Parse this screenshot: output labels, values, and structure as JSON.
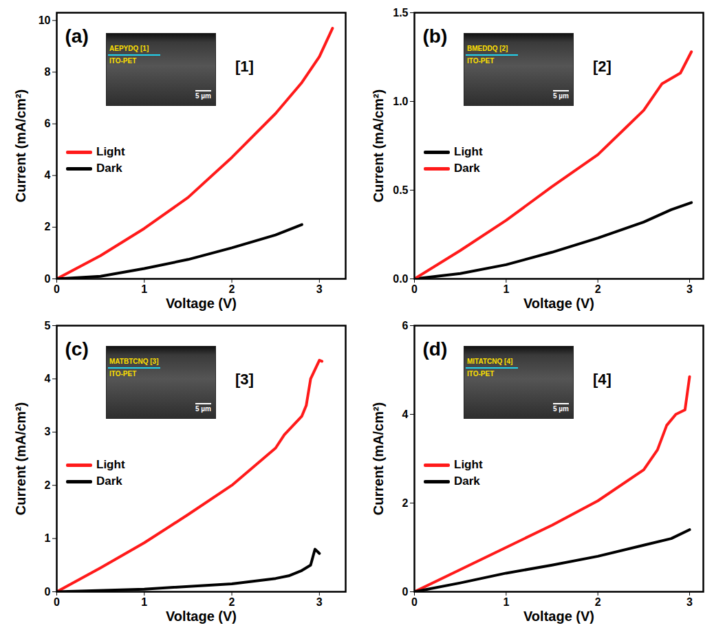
{
  "chart_data": [
    {
      "type": "line",
      "panel_label": "(a)",
      "x_label": "Voltage (V)",
      "y_label": "Current (mA/cm²)",
      "xlim": [
        0,
        3.3
      ],
      "xticks": [
        0,
        1,
        2,
        3
      ],
      "ylim": [
        0,
        10.3
      ],
      "yticks": [
        0,
        2,
        4,
        6,
        8,
        10
      ],
      "legend": "center-left",
      "annotation": "[1]",
      "inset": {
        "layer_label": "AEPYDQ [1]",
        "substrate_label": "ITO-PET",
        "scale_bar": "5 µm"
      },
      "series": [
        {
          "name": "Light",
          "color": "#ff1a1a",
          "x": [
            0,
            0.5,
            1,
            1.5,
            2,
            2.5,
            2.8,
            3,
            3.15
          ],
          "values": [
            0,
            0.9,
            1.95,
            3.15,
            4.7,
            6.4,
            7.6,
            8.6,
            9.7
          ]
        },
        {
          "name": "Dark",
          "color": "#000000",
          "x": [
            0,
            0.5,
            1,
            1.5,
            2,
            2.3,
            2.5,
            2.8
          ],
          "values": [
            0,
            0.1,
            0.4,
            0.75,
            1.2,
            1.5,
            1.7,
            2.1
          ]
        }
      ]
    },
    {
      "type": "line",
      "panel_label": "(b)",
      "x_label": "Voltage (V)",
      "y_label": "Current (mA/cm²)",
      "xlim": [
        0,
        3.15
      ],
      "xticks": [
        0,
        1,
        2,
        3
      ],
      "ylim": [
        0,
        1.5
      ],
      "yticks": [
        {
          "value": 0,
          "label": "0.0"
        },
        {
          "value": 0.5,
          "label": "0.5"
        },
        {
          "value": 1,
          "label": "1.0"
        },
        {
          "value": 1.5,
          "label": "1.5"
        }
      ],
      "legend": "center-left",
      "annotation": "[2]",
      "inset": {
        "layer_label": "BMEDDQ [2]",
        "substrate_label": "ITO-PET",
        "scale_bar": "5 µm"
      },
      "series": [
        {
          "name": "Light",
          "color": "#000000",
          "x": [
            0,
            0.5,
            1,
            1.5,
            2,
            2.5,
            2.8,
            3.02
          ],
          "values": [
            0,
            0.03,
            0.08,
            0.15,
            0.23,
            0.32,
            0.39,
            0.43
          ]
        },
        {
          "name": "Dark",
          "color": "#ff1a1a",
          "x": [
            0,
            0.5,
            1,
            1.5,
            2,
            2.3,
            2.5,
            2.7,
            2.9,
            3.02
          ],
          "values": [
            0,
            0.16,
            0.33,
            0.52,
            0.7,
            0.85,
            0.95,
            1.1,
            1.16,
            1.28
          ]
        }
      ]
    },
    {
      "type": "line",
      "panel_label": "(c)",
      "x_label": "Voltage (V)",
      "y_label": "Current (mA/cm²)",
      "xlim": [
        0,
        3.3
      ],
      "xticks": [
        0,
        1,
        2,
        3
      ],
      "ylim": [
        0,
        5
      ],
      "yticks": [
        0,
        1,
        2,
        3,
        4,
        5
      ],
      "legend": "center-left",
      "annotation": "[3]",
      "inset": {
        "layer_label": "MATBTCNQ [3]",
        "substrate_label": "ITO-PET",
        "scale_bar": "5 µm"
      },
      "series": [
        {
          "name": "Light",
          "color": "#ff1a1a",
          "x": [
            0,
            0.5,
            1,
            1.5,
            2,
            2.5,
            2.6,
            2.8,
            2.85,
            2.9,
            3.0,
            3.03
          ],
          "values": [
            0,
            0.45,
            0.92,
            1.45,
            2.0,
            2.7,
            2.95,
            3.3,
            3.5,
            4.0,
            4.35,
            4.33
          ]
        },
        {
          "name": "Dark",
          "color": "#000000",
          "x": [
            0,
            1,
            2,
            2.5,
            2.65,
            2.8,
            2.9,
            2.95,
            3.0
          ],
          "values": [
            0,
            0.05,
            0.15,
            0.25,
            0.3,
            0.4,
            0.5,
            0.8,
            0.72
          ]
        }
      ]
    },
    {
      "type": "line",
      "panel_label": "(d)",
      "x_label": "Voltage (V)",
      "y_label": "Current (mA/cm²)",
      "xlim": [
        0,
        3.15
      ],
      "xticks": [
        0,
        1,
        2,
        3
      ],
      "ylim": [
        0,
        6
      ],
      "yticks": [
        0,
        2,
        4,
        6
      ],
      "legend": "center-left",
      "annotation": "[4]",
      "inset": {
        "layer_label": "MITATCNQ [4]",
        "substrate_label": "ITO-PET",
        "scale_bar": "5 µm"
      },
      "series": [
        {
          "name": "Light",
          "color": "#ff1a1a",
          "x": [
            0,
            0.5,
            1,
            1.5,
            2,
            2.5,
            2.65,
            2.75,
            2.85,
            2.95,
            3.0
          ],
          "values": [
            0,
            0.5,
            1.0,
            1.5,
            2.05,
            2.75,
            3.2,
            3.75,
            4.0,
            4.1,
            4.85
          ]
        },
        {
          "name": "Dark",
          "color": "#000000",
          "x": [
            0,
            0.5,
            1,
            1.5,
            2,
            2.5,
            2.8,
            3.0
          ],
          "values": [
            0,
            0.2,
            0.42,
            0.6,
            0.8,
            1.05,
            1.2,
            1.4
          ]
        }
      ]
    }
  ]
}
